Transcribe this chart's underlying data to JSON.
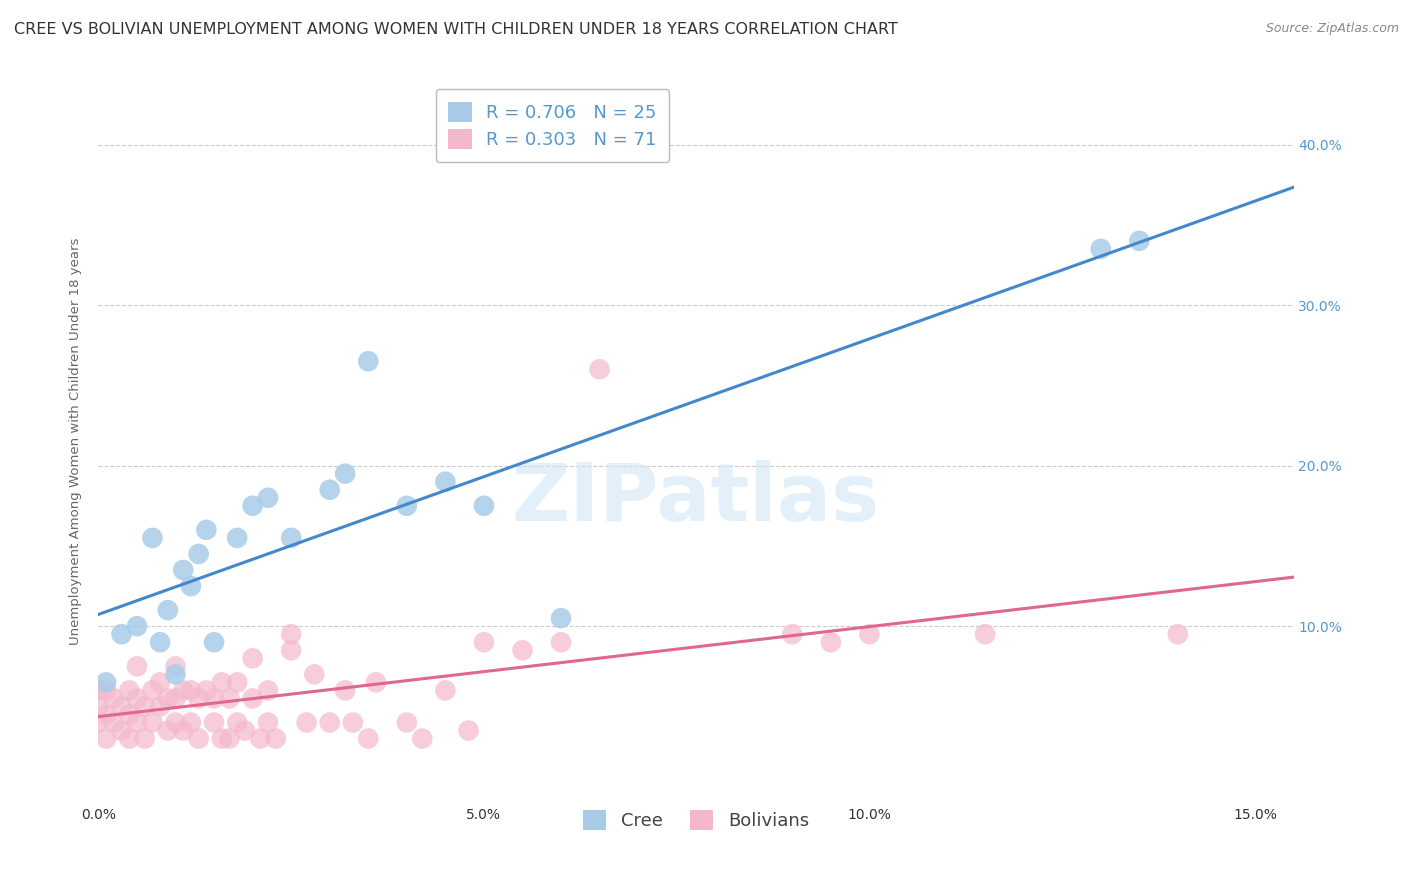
{
  "title": "CREE VS BOLIVIAN UNEMPLOYMENT AMONG WOMEN WITH CHILDREN UNDER 18 YEARS CORRELATION CHART",
  "source": "Source: ZipAtlas.com",
  "ylabel": "Unemployment Among Women with Children Under 18 years",
  "xlabel_ticks": [
    "0.0%",
    "5.0%",
    "10.0%",
    "15.0%"
  ],
  "xlabel_tick_vals": [
    0.0,
    0.05,
    0.1,
    0.15
  ],
  "ytick_labels": [
    "10.0%",
    "20.0%",
    "30.0%",
    "40.0%"
  ],
  "ytick_vals": [
    0.1,
    0.2,
    0.3,
    0.4
  ],
  "xlim": [
    0.0,
    0.155
  ],
  "ylim": [
    -0.01,
    0.44
  ],
  "watermark": "ZIPatlas",
  "cree_color": "#a8cce8",
  "bolivian_color": "#f4b8cc",
  "cree_line_color": "#4488cc",
  "bolivian_line_color": "#e06888",
  "tick_color": "#5599cc",
  "cree_R": 0.706,
  "cree_N": 25,
  "bolivian_R": 0.303,
  "bolivian_N": 71,
  "cree_points_x": [
    0.001,
    0.003,
    0.005,
    0.007,
    0.008,
    0.009,
    0.01,
    0.011,
    0.012,
    0.013,
    0.014,
    0.015,
    0.018,
    0.02,
    0.022,
    0.025,
    0.03,
    0.032,
    0.035,
    0.04,
    0.045,
    0.05,
    0.06,
    0.13,
    0.135
  ],
  "cree_points_y": [
    0.065,
    0.095,
    0.1,
    0.155,
    0.09,
    0.11,
    0.07,
    0.135,
    0.125,
    0.145,
    0.16,
    0.09,
    0.155,
    0.175,
    0.18,
    0.155,
    0.185,
    0.195,
    0.265,
    0.175,
    0.19,
    0.175,
    0.105,
    0.335,
    0.34
  ],
  "bolivian_points_x": [
    0.0,
    0.0,
    0.0,
    0.001,
    0.001,
    0.001,
    0.002,
    0.002,
    0.003,
    0.003,
    0.004,
    0.004,
    0.004,
    0.005,
    0.005,
    0.005,
    0.006,
    0.006,
    0.007,
    0.007,
    0.008,
    0.008,
    0.009,
    0.009,
    0.01,
    0.01,
    0.01,
    0.011,
    0.011,
    0.012,
    0.012,
    0.013,
    0.013,
    0.014,
    0.015,
    0.015,
    0.016,
    0.016,
    0.017,
    0.017,
    0.018,
    0.018,
    0.019,
    0.02,
    0.02,
    0.021,
    0.022,
    0.022,
    0.023,
    0.025,
    0.025,
    0.027,
    0.028,
    0.03,
    0.032,
    0.033,
    0.035,
    0.036,
    0.04,
    0.042,
    0.045,
    0.048,
    0.05,
    0.055,
    0.06,
    0.065,
    0.09,
    0.095,
    0.1,
    0.115,
    0.14
  ],
  "bolivian_points_y": [
    0.04,
    0.05,
    0.06,
    0.03,
    0.045,
    0.06,
    0.04,
    0.055,
    0.035,
    0.05,
    0.03,
    0.045,
    0.06,
    0.04,
    0.055,
    0.075,
    0.03,
    0.05,
    0.04,
    0.06,
    0.05,
    0.065,
    0.035,
    0.055,
    0.04,
    0.055,
    0.075,
    0.035,
    0.06,
    0.04,
    0.06,
    0.03,
    0.055,
    0.06,
    0.04,
    0.055,
    0.03,
    0.065,
    0.03,
    0.055,
    0.04,
    0.065,
    0.035,
    0.055,
    0.08,
    0.03,
    0.04,
    0.06,
    0.03,
    0.085,
    0.095,
    0.04,
    0.07,
    0.04,
    0.06,
    0.04,
    0.03,
    0.065,
    0.04,
    0.03,
    0.06,
    0.035,
    0.09,
    0.085,
    0.09,
    0.26,
    0.095,
    0.09,
    0.095,
    0.095,
    0.095
  ],
  "background_color": "#ffffff",
  "grid_color": "#cccccc",
  "title_fontsize": 11.5,
  "axis_label_fontsize": 9.5,
  "tick_fontsize": 10,
  "legend_fontsize": 13,
  "source_fontsize": 9
}
